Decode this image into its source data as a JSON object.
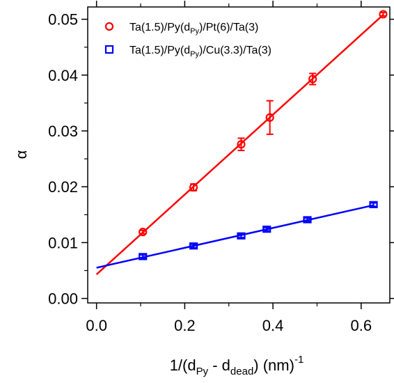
{
  "chart_data": {
    "type": "scatter",
    "ylabel": "α",
    "xlabel": {
      "base": "1/(d",
      "sub1": "Py",
      "mid": " - d",
      "sub2": "dead",
      "end": ") (nm)",
      "sup": "-1"
    },
    "xlim": [
      -0.02,
      0.665
    ],
    "ylim": [
      -0.0008,
      0.0522
    ],
    "xticks": [
      0.0,
      0.2,
      0.4,
      0.6
    ],
    "xtick_labels": [
      "0.0",
      "0.2",
      "0.4",
      "0.6"
    ],
    "yticks": [
      0.0,
      0.01,
      0.02,
      0.03,
      0.04,
      0.05
    ],
    "ytick_labels": [
      "0.00",
      "0.01",
      "0.02",
      "0.03",
      "0.04",
      "0.05"
    ],
    "grid": false,
    "legend_position": "top-left",
    "series": [
      {
        "name": "Ta(1.5)/Py(dPy)/Pt(6)/Ta(3)",
        "legend": {
          "pre": "Ta(1.5)/Py(d",
          "sub": "Py",
          "post": ")/Pt(6)/Ta(3)"
        },
        "color": "#ff0000",
        "marker": "circle",
        "x": [
          0.105,
          0.22,
          0.328,
          0.393,
          0.49,
          0.65
        ],
        "y": [
          0.0119,
          0.0199,
          0.0276,
          0.0324,
          0.0393,
          0.0509
        ],
        "yerr": [
          0.0003,
          0.0006,
          0.0011,
          0.003,
          0.001,
          0.0003
        ],
        "fit": {
          "x0": 0.0,
          "y0": 0.0043,
          "x1": 0.65,
          "y1": 0.0508
        }
      },
      {
        "name": "Ta(1.5)/Py(dPy)/Cu(3.3)/Ta(3)",
        "legend": {
          "pre": "Ta(1.5)/Py(d",
          "sub": "Py",
          "post": ")/Cu(3.3)/Ta(3)"
        },
        "color": "#0000ff",
        "marker": "square",
        "x": [
          0.105,
          0.22,
          0.328,
          0.386,
          0.478,
          0.628
        ],
        "y": [
          0.0075,
          0.0094,
          0.0112,
          0.0124,
          0.0141,
          0.0168
        ],
        "yerr": [
          0.0003,
          0.0003,
          0.0003,
          0.0003,
          0.0003,
          0.0003
        ],
        "fit": {
          "x0": 0.0,
          "y0": 0.0055,
          "x1": 0.628,
          "y1": 0.0167
        }
      }
    ]
  }
}
